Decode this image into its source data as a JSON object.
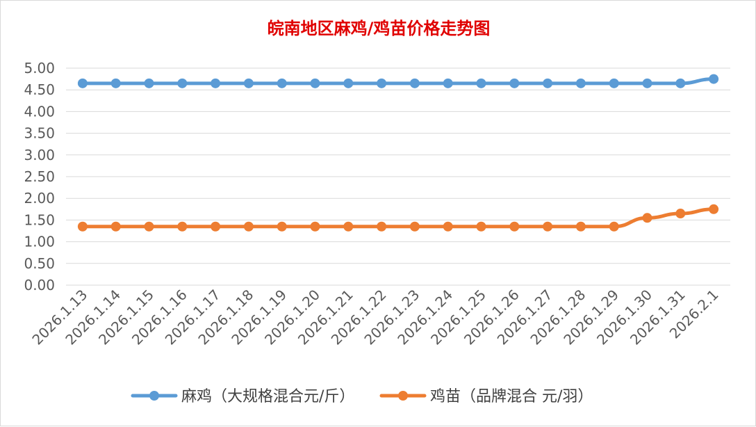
{
  "chart_data": {
    "type": "line",
    "title": "皖南地区麻鸡/鸡苗价格走势图",
    "title_color": "#e00000",
    "categories": [
      "2026.1.13",
      "2026.1.14",
      "2026.1.15",
      "2026.1.16",
      "2026.1.17",
      "2026.1.18",
      "2026.1.19",
      "2026.1.20",
      "2026.1.21",
      "2026.1.22",
      "2026.1.23",
      "2026.1.24",
      "2026.1.25",
      "2026.1.26",
      "2026.1.27",
      "2026.1.28",
      "2026.1.29",
      "2026.1.30",
      "2026.1.31",
      "2026.2.1"
    ],
    "series": [
      {
        "name": "麻鸡（大规格混合元/斤）",
        "color": "#5b9bd5",
        "values": [
          4.65,
          4.65,
          4.65,
          4.65,
          4.65,
          4.65,
          4.65,
          4.65,
          4.65,
          4.65,
          4.65,
          4.65,
          4.65,
          4.65,
          4.65,
          4.65,
          4.65,
          4.65,
          4.65,
          4.75
        ]
      },
      {
        "name": "鸡苗（品牌混合 元/羽）",
        "color": "#ed7d31",
        "values": [
          1.35,
          1.35,
          1.35,
          1.35,
          1.35,
          1.35,
          1.35,
          1.35,
          1.35,
          1.35,
          1.35,
          1.35,
          1.35,
          1.35,
          1.35,
          1.35,
          1.35,
          1.55,
          1.65,
          1.75
        ]
      }
    ],
    "y_ticks": [
      "0.00",
      "0.50",
      "1.00",
      "1.50",
      "2.00",
      "2.50",
      "3.00",
      "3.50",
      "4.00",
      "4.50",
      "5.00"
    ],
    "ylim": [
      0,
      5
    ],
    "grid": true,
    "legend_position": "bottom",
    "xlabel": "",
    "ylabel": ""
  }
}
